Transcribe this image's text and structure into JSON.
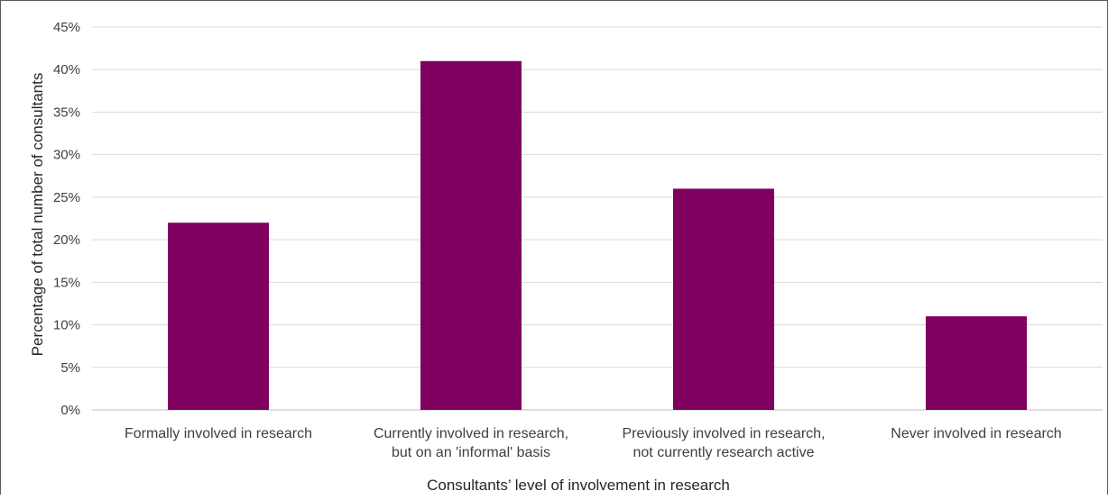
{
  "chart_data": {
    "type": "bar",
    "title": "",
    "xlabel": "Consultants’ level of involvement in research",
    "ylabel": "Percentage of total number of consultants",
    "ylim": [
      0,
      45
    ],
    "ytick_step": 5,
    "ytick_labels": [
      "0%",
      "5%",
      "10%",
      "15%",
      "20%",
      "25%",
      "30%",
      "35%",
      "40%",
      "45%"
    ],
    "grid": true,
    "legend": "none",
    "bar_color": "#800060",
    "categories": [
      [
        "Formally involved in research"
      ],
      [
        "Currently involved in research,",
        "but on an 'informal' basis"
      ],
      [
        "Previously involved in research,",
        "not currently research active"
      ],
      [
        "Never involved in research"
      ]
    ],
    "values": [
      22,
      41,
      26,
      11
    ]
  }
}
